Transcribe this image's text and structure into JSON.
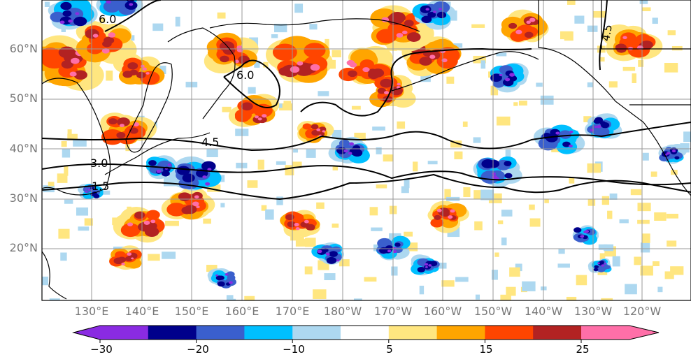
{
  "latitude_labels": [
    "60°N",
    "50°N",
    "40°N",
    "30°N",
    "20°N"
  ],
  "longitude_labels": [
    "130°E",
    "140°E",
    "150°E",
    "160°E",
    "170°E",
    "180°W",
    "170°W",
    "160°W",
    "150°W",
    "140°W",
    "130°W",
    "120°W"
  ],
  "contour_labels": [
    "6.0",
    "6.0",
    "4.5",
    "3.0",
    "1.5",
    "4.5"
  ],
  "colorbar": {
    "tick_labels": [
      "−30",
      "−20",
      "−10",
      "5",
      "15",
      "25"
    ],
    "colors": [
      "#8a2be2",
      "#00008b",
      "#3a5fcd",
      "#00bfff",
      "#add8f0",
      "#ffffff",
      "#ffe680",
      "#ffa500",
      "#ff4500",
      "#b22222",
      "#ff6fa8"
    ]
  }
}
